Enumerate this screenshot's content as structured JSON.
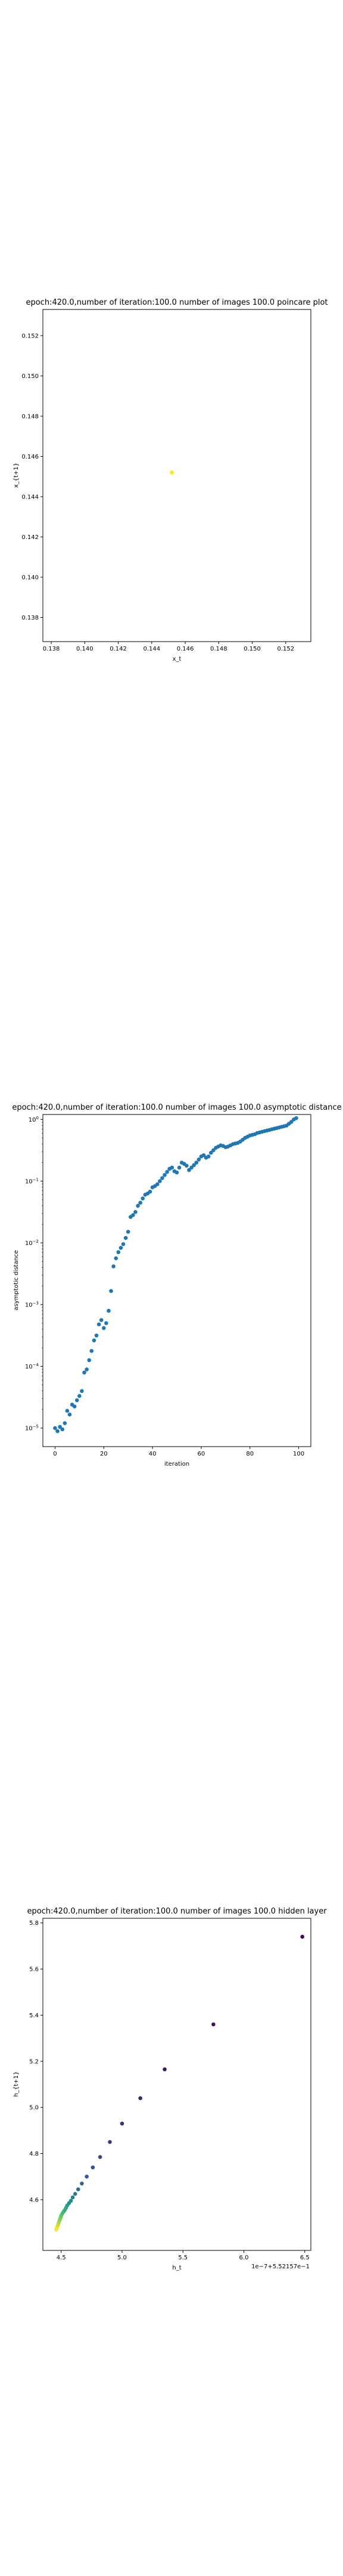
{
  "chart_data": [
    {
      "type": "scatter",
      "title": "epoch:420.0,number of iteration:100.0 number of images 100.0 poincare plot",
      "xlabel": "x_t",
      "ylabel": "x_{t+1}",
      "xlim": [
        0.1375,
        0.1535
      ],
      "ylim": [
        0.1368,
        0.1533
      ],
      "xticks": [
        0.138,
        0.14,
        0.142,
        0.144,
        0.146,
        0.148,
        0.15,
        0.152
      ],
      "xtick_labels": [
        "0.138",
        "0.140",
        "0.142",
        "0.144",
        "0.146",
        "0.148",
        "0.150",
        "0.152"
      ],
      "yticks": [
        0.138,
        0.14,
        0.142,
        0.144,
        0.146,
        0.148,
        0.15,
        0.152
      ],
      "ytick_labels": [
        "0.138",
        "0.140",
        "0.142",
        "0.144",
        "0.146",
        "0.148",
        "0.150",
        "0.152"
      ],
      "color": "#fde725",
      "points": [
        {
          "x": 0.1452,
          "y": 0.1452
        }
      ]
    },
    {
      "type": "scatter",
      "title": "epoch:420.0,number of iteration:100.0  number of images 100.0 asymptotic distance",
      "xlabel": "iteration",
      "ylabel": "asymptotic distance",
      "yscale": "log",
      "xlim": [
        -5,
        105
      ],
      "ylim_log10": [
        -5.3,
        0.08
      ],
      "xticks": [
        0,
        20,
        40,
        60,
        80,
        100
      ],
      "xtick_labels": [
        "0",
        "20",
        "40",
        "60",
        "80",
        "100"
      ],
      "ytick_exponents": [
        -5,
        -4,
        -3,
        -2,
        -1,
        0
      ],
      "ytick_base": "10",
      "color": "#1f77b4",
      "log10_values": [
        -5.0,
        -5.05,
        -4.98,
        -5.02,
        -4.92,
        -4.72,
        -4.78,
        -4.62,
        -4.65,
        -4.55,
        -4.48,
        -4.4,
        -4.1,
        -4.05,
        -3.9,
        -3.75,
        -3.58,
        -3.5,
        -3.32,
        -3.25,
        -3.38,
        -3.3,
        -3.1,
        -2.78,
        -2.38,
        -2.25,
        -2.15,
        -2.08,
        -2.02,
        -1.92,
        -1.82,
        -1.58,
        -1.55,
        -1.5,
        -1.4,
        -1.35,
        -1.28,
        -1.22,
        -1.2,
        -1.17,
        -1.1,
        -1.08,
        -1.05,
        -1.0,
        -0.95,
        -0.9,
        -0.85,
        -0.8,
        -0.78,
        -0.84,
        -0.86,
        -0.78,
        -0.7,
        -0.72,
        -0.75,
        -0.82,
        -0.78,
        -0.74,
        -0.7,
        -0.65,
        -0.6,
        -0.58,
        -0.62,
        -0.6,
        -0.54,
        -0.5,
        -0.46,
        -0.44,
        -0.42,
        -0.43,
        -0.45,
        -0.44,
        -0.42,
        -0.4,
        -0.39,
        -0.38,
        -0.36,
        -0.33,
        -0.3,
        -0.28,
        -0.26,
        -0.25,
        -0.24,
        -0.22,
        -0.21,
        -0.2,
        -0.19,
        -0.18,
        -0.17,
        -0.16,
        -0.15,
        -0.14,
        -0.13,
        -0.12,
        -0.11,
        -0.1,
        -0.07,
        -0.04,
        0.0,
        0.02
      ]
    },
    {
      "type": "scatter",
      "title": "epoch:420.0,number of iteration:100.0  number of images 100.0 hidden layer",
      "xlabel": "h_t",
      "ylabel": "h_{t+1}",
      "offset_text": "1e−7+5.52157e−1",
      "xlim": [
        4.35,
        6.55
      ],
      "ylim": [
        4.38,
        5.82
      ],
      "xticks": [
        4.5,
        5.0,
        5.5,
        6.0,
        6.5
      ],
      "xtick_labels": [
        "4.5",
        "5.0",
        "5.5",
        "6.0",
        "6.5"
      ],
      "yticks": [
        4.6,
        4.8,
        5.0,
        5.2,
        5.4,
        5.6,
        5.8
      ],
      "ytick_labels": [
        "4.6",
        "4.8",
        "5.0",
        "5.2",
        "5.4",
        "5.6",
        "5.8"
      ],
      "points": [
        {
          "x": 6.48,
          "y": 5.74
        },
        {
          "x": 5.75,
          "y": 5.36
        },
        {
          "x": 5.35,
          "y": 5.165
        },
        {
          "x": 5.15,
          "y": 5.04
        },
        {
          "x": 5.0,
          "y": 4.93
        },
        {
          "x": 4.9,
          "y": 4.85
        },
        {
          "x": 4.82,
          "y": 4.785
        },
        {
          "x": 4.76,
          "y": 4.74
        },
        {
          "x": 4.71,
          "y": 4.7
        },
        {
          "x": 4.67,
          "y": 4.67
        },
        {
          "x": 4.64,
          "y": 4.645
        },
        {
          "x": 4.615,
          "y": 4.625
        },
        {
          "x": 4.595,
          "y": 4.61
        },
        {
          "x": 4.58,
          "y": 4.595
        },
        {
          "x": 4.565,
          "y": 4.585
        },
        {
          "x": 4.55,
          "y": 4.575
        },
        {
          "x": 4.54,
          "y": 4.565
        },
        {
          "x": 4.53,
          "y": 4.555
        },
        {
          "x": 4.52,
          "y": 4.548
        },
        {
          "x": 4.51,
          "y": 4.54
        },
        {
          "x": 4.5,
          "y": 4.53
        },
        {
          "x": 4.495,
          "y": 4.522
        },
        {
          "x": 4.49,
          "y": 4.515
        },
        {
          "x": 4.485,
          "y": 4.508
        },
        {
          "x": 4.48,
          "y": 4.5
        },
        {
          "x": 4.475,
          "y": 4.492
        },
        {
          "x": 4.47,
          "y": 4.485
        },
        {
          "x": 4.465,
          "y": 4.478
        },
        {
          "x": 4.46,
          "y": 4.47
        }
      ],
      "colormap": [
        "#440154",
        "#3b528b",
        "#21918c",
        "#5ec962",
        "#fde725"
      ]
    }
  ]
}
